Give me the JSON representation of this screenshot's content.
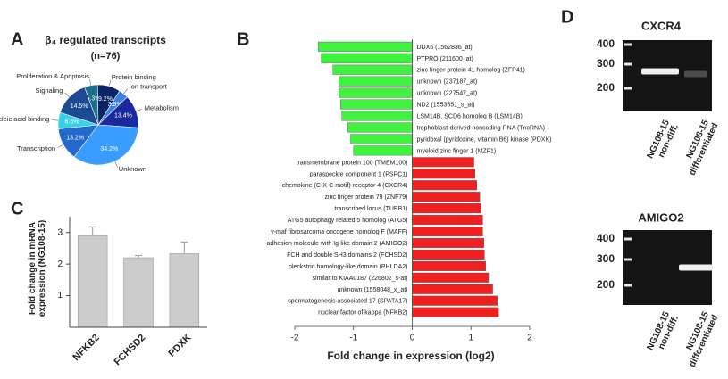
{
  "panel_labels": [
    "A",
    "B",
    "C",
    "D"
  ],
  "chart_data": [
    {
      "type": "pie",
      "title": "β₄ regulated transcripts",
      "subtitle": "(n=76)",
      "categories": [
        "Proliferation & Apoptosis",
        "Protein binding",
        "Ion transport",
        "Metabolism",
        "Unknown",
        "Transcription",
        "Nucleic acid binding",
        "Signaling"
      ],
      "values": [
        5.3,
        9.2,
        3.9,
        13.4,
        34.2,
        13.2,
        6.6,
        14.5
      ],
      "value_labels": [
        "5.3%",
        "9.2%",
        "3.9%",
        "13.4%",
        "34.2%",
        "13.2%",
        "6.6%",
        "14.5%"
      ],
      "colors": [
        "#1c6e88",
        "#0c2466",
        "#3a82e0",
        "#1a2a9c",
        "#3b9cff",
        "#2469cc",
        "#33d2ea",
        "#1d4a90"
      ]
    },
    {
      "type": "barh",
      "categories": [
        "DDX6 (1562836_at)",
        "PTPRO (211600_at)",
        "zinc finger protein 41 homolog (ZFP41)",
        "unknown (237187_at)",
        "unknown (227547_at)",
        "ND2 (1553551_s_at)",
        "LSM14B, SCD6 homolog B (LSM14B)",
        "trophoblast-derived noncoding RNA (TncRNA)",
        "pyridoxal (pyridoxine, vitamin B6) kinase (PDXK)",
        "myeloid zinc finger 1 (MZF1)",
        "transmembrane protein 100 (TMEM100)",
        "paraspeckle component 1 (PSPC1)",
        "chemokine (C-X-C motif) receptor 4 (CXCR4)",
        "zinc finger protein 79 (ZNF79)",
        "transcribed locus (TUBB1)",
        "ATG5 autophagy related 5 homolog (ATG5)",
        "v-maf fibrosarcoma oncogene homolog F (MAFF)",
        "adhesion molecule with Ig-like domain 2 (AMIGO2)",
        "FCH and double SH3 domains 2 (FCHSD2)",
        "pleckstrin homology-like domain (PHLDA2)",
        "similar to KIAA0187 (226802_s-at)",
        "unknown (1558048_x_at)",
        "spermatogenesis associated 17 (SPATA17)",
        "nuclear factor of kappa (NFKB2)"
      ],
      "values": [
        -1.6,
        -1.55,
        -1.35,
        -1.25,
        -1.25,
        -1.22,
        -1.2,
        -1.1,
        -1.05,
        -1.0,
        1.05,
        1.07,
        1.1,
        1.15,
        1.17,
        1.2,
        1.2,
        1.22,
        1.23,
        1.25,
        1.3,
        1.37,
        1.45,
        1.47
      ],
      "color_negative": "#3ef23e",
      "color_positive": "#f02020",
      "xlim": [
        -2,
        2
      ],
      "xticks": [
        -2,
        -1,
        0,
        1,
        2
      ],
      "xlabel": "Fold change in expression (log2)"
    },
    {
      "type": "bar",
      "categories": [
        "NFKB2",
        "FCHSD2",
        "PDXK"
      ],
      "values": [
        2.9,
        2.2,
        2.33
      ],
      "errors": [
        0.28,
        0.07,
        0.37
      ],
      "color": "#cccccc",
      "ylim": [
        0,
        3.5
      ],
      "yticks": [
        1,
        2,
        3
      ],
      "ylabel": "Fold change in mRNA expression (NG108-15)"
    }
  ],
  "gels": [
    {
      "title": "CXCR4",
      "ladder": [
        400,
        300,
        200
      ],
      "lanes": [
        "NG108-15 non-diff.",
        "NG108-15 differentiated"
      ]
    },
    {
      "title": "AMIGO2",
      "ladder": [
        400,
        300,
        200
      ],
      "lanes": [
        "NG108-15 non-diff.",
        "NG108-15 differentiated"
      ]
    }
  ]
}
